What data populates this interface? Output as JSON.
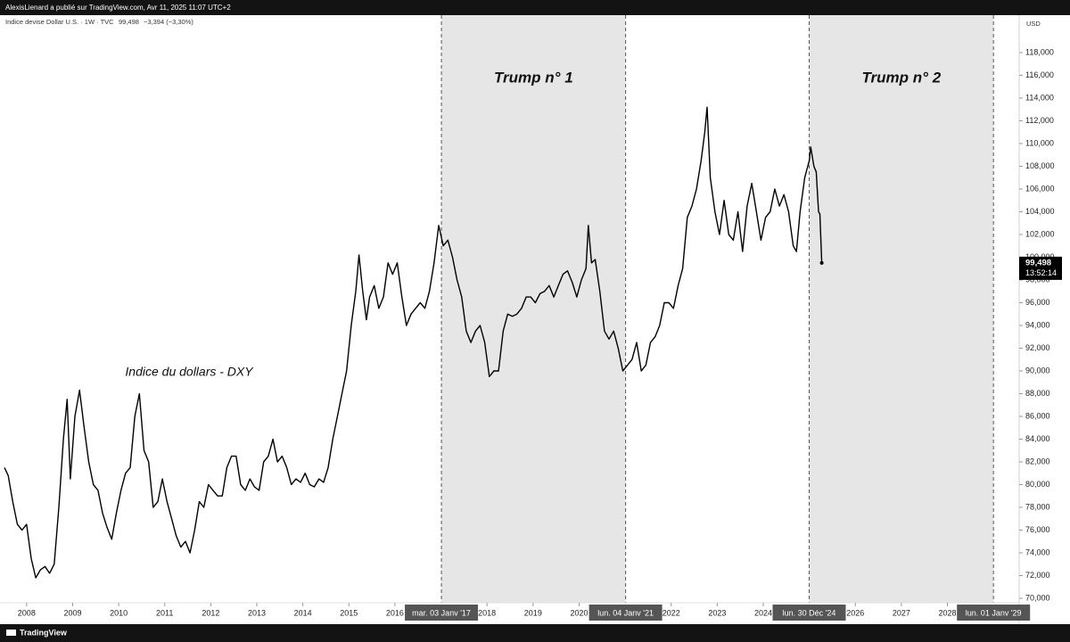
{
  "header": {
    "publisher": "AlexisLienard a publié sur TradingView.com, Avr 11, 2025 11:07 UTC+2",
    "brand": "TradingView"
  },
  "chart_data": {
    "type": "line",
    "legend_text": "Indice devise Dollar U.S. · 1W · TVC",
    "last_price": {
      "value": 99.498,
      "label": "99,498"
    },
    "change": "−3,394 (−3,30%)",
    "countdown": "13:52:14",
    "currency": "USD",
    "series": [
      {
        "name": "Indice du dollars - DXY",
        "color": "#000000",
        "x": [
          2007.52,
          2007.6,
          2007.7,
          2007.8,
          2007.9,
          2008.0,
          2008.1,
          2008.2,
          2008.3,
          2008.4,
          2008.5,
          2008.6,
          2008.7,
          2008.8,
          2008.88,
          2008.95,
          2009.05,
          2009.15,
          2009.25,
          2009.35,
          2009.45,
          2009.55,
          2009.65,
          2009.75,
          2009.85,
          2009.95,
          2010.05,
          2010.15,
          2010.25,
          2010.35,
          2010.45,
          2010.55,
          2010.65,
          2010.75,
          2010.85,
          2010.95,
          2011.05,
          2011.15,
          2011.25,
          2011.35,
          2011.45,
          2011.55,
          2011.65,
          2011.75,
          2011.85,
          2011.95,
          2012.05,
          2012.15,
          2012.25,
          2012.35,
          2012.45,
          2012.55,
          2012.65,
          2012.75,
          2012.85,
          2012.95,
          2013.05,
          2013.15,
          2013.25,
          2013.35,
          2013.45,
          2013.55,
          2013.65,
          2013.75,
          2013.85,
          2013.95,
          2014.05,
          2014.15,
          2014.25,
          2014.35,
          2014.45,
          2014.55,
          2014.65,
          2014.75,
          2014.85,
          2014.95,
          2015.05,
          2015.15,
          2015.22,
          2015.3,
          2015.38,
          2015.45,
          2015.55,
          2015.65,
          2015.75,
          2015.85,
          2015.95,
          2016.05,
          2016.15,
          2016.25,
          2016.35,
          2016.45,
          2016.55,
          2016.65,
          2016.75,
          2016.85,
          2016.95,
          2017.05,
          2017.15,
          2017.25,
          2017.35,
          2017.45,
          2017.55,
          2017.65,
          2017.75,
          2017.85,
          2017.95,
          2018.05,
          2018.15,
          2018.25,
          2018.35,
          2018.45,
          2018.55,
          2018.65,
          2018.75,
          2018.85,
          2018.95,
          2019.05,
          2019.15,
          2019.25,
          2019.35,
          2019.45,
          2019.55,
          2019.65,
          2019.75,
          2019.85,
          2019.95,
          2020.05,
          2020.15,
          2020.2,
          2020.27,
          2020.35,
          2020.45,
          2020.55,
          2020.65,
          2020.75,
          2020.85,
          2020.95,
          2021.05,
          2021.15,
          2021.25,
          2021.35,
          2021.45,
          2021.55,
          2021.65,
          2021.75,
          2021.85,
          2021.95,
          2022.05,
          2022.15,
          2022.25,
          2022.35,
          2022.45,
          2022.55,
          2022.65,
          2022.73,
          2022.78,
          2022.85,
          2022.95,
          2023.05,
          2023.15,
          2023.25,
          2023.35,
          2023.45,
          2023.55,
          2023.65,
          2023.75,
          2023.85,
          2023.95,
          2024.05,
          2024.15,
          2024.25,
          2024.35,
          2024.45,
          2024.55,
          2024.65,
          2024.72,
          2024.8,
          2024.9,
          2025.0,
          2025.03,
          2025.1,
          2025.15,
          2025.2,
          2025.23,
          2025.27
        ],
        "values": [
          81.5,
          80.8,
          78.5,
          76.5,
          76,
          76.5,
          73.5,
          71.8,
          72.5,
          72.8,
          72.2,
          73,
          78,
          84,
          87.5,
          80.5,
          86,
          88.3,
          85,
          82,
          80,
          79.5,
          77.5,
          76.2,
          75.2,
          77.5,
          79.5,
          81,
          81.5,
          86,
          88,
          83,
          82,
          78,
          78.5,
          80.5,
          78.5,
          77,
          75.5,
          74.5,
          75,
          74,
          76,
          78.5,
          78,
          80,
          79.5,
          79,
          79,
          81.5,
          82.5,
          82.5,
          80,
          79.5,
          80.5,
          79.8,
          79.5,
          82,
          82.5,
          84,
          82,
          82.5,
          81.5,
          80,
          80.5,
          80.2,
          81,
          80,
          79.8,
          80.5,
          80.2,
          81.5,
          84,
          86,
          88,
          90,
          94,
          97,
          100.2,
          97,
          94.5,
          96.5,
          97.5,
          95.5,
          96.5,
          99.5,
          98.5,
          99.5,
          96.5,
          94,
          95,
          95.5,
          96,
          95.5,
          97,
          99.5,
          102.8,
          101,
          101.5,
          100,
          98,
          96.5,
          93.5,
          92.5,
          93.5,
          94,
          92.5,
          89.5,
          90,
          90,
          93.5,
          95,
          94.8,
          95,
          95.5,
          96.5,
          96.5,
          96,
          96.8,
          97,
          97.5,
          96.5,
          97.5,
          98.5,
          98.8,
          97.8,
          96.5,
          98,
          99,
          102.8,
          99.5,
          99.8,
          97,
          93.5,
          92.8,
          93.5,
          92,
          90,
          90.5,
          91,
          92.5,
          90,
          90.5,
          92.5,
          93,
          94,
          96,
          96,
          95.5,
          97.5,
          99,
          103.5,
          104.5,
          106,
          108.5,
          111,
          113.2,
          107,
          104,
          102,
          105,
          102,
          101.5,
          104,
          100.5,
          104.5,
          106.5,
          104,
          101.5,
          103.5,
          104,
          106,
          104.5,
          105.5,
          104,
          101,
          100.5,
          104,
          107,
          108.5,
          109.7,
          108,
          107.5,
          104,
          103.8,
          99.498
        ]
      }
    ],
    "regions": [
      {
        "label": "Trump n° 1",
        "start": 2017.01,
        "end": 2021.01,
        "start_label": "mar. 03 Janv '17",
        "end_label": "lun. 04 Janv '21"
      },
      {
        "label": "Trump n° 2",
        "start": 2024.997,
        "end": 2029.0,
        "start_label": "lun. 30 Déc '24",
        "end_label": "lun. 01 Janv '29"
      }
    ],
    "xlim": [
      2007.5,
      2029.5
    ],
    "xticks": [
      2008,
      2009,
      2010,
      2011,
      2012,
      2013,
      2014,
      2015,
      2016,
      2018,
      2019,
      2020,
      2022,
      2023,
      2024,
      2026,
      2027,
      2028
    ],
    "ylim": [
      67.96,
      121.29
    ],
    "yticks": [
      {
        "value": 70,
        "label": "70,000"
      },
      {
        "value": 72,
        "label": "72,000"
      },
      {
        "value": 74,
        "label": "74,000"
      },
      {
        "value": 76,
        "label": "76,000"
      },
      {
        "value": 78,
        "label": "78,000"
      },
      {
        "value": 80,
        "label": "80,000"
      },
      {
        "value": 82,
        "label": "82,000"
      },
      {
        "value": 84,
        "label": "84,000"
      },
      {
        "value": 86,
        "label": "86,000"
      },
      {
        "value": 88,
        "label": "88,000"
      },
      {
        "value": 90,
        "label": "90,000"
      },
      {
        "value": 92,
        "label": "92,000"
      },
      {
        "value": 94,
        "label": "94,000"
      },
      {
        "value": 96,
        "label": "96,000"
      },
      {
        "value": 98,
        "label": "98,000"
      },
      {
        "value": 100,
        "label": "100,000"
      },
      {
        "value": 102,
        "label": "102,000"
      },
      {
        "value": 104,
        "label": "104,000"
      },
      {
        "value": 106,
        "label": "106,000"
      },
      {
        "value": 108,
        "label": "108,000"
      },
      {
        "value": 110,
        "label": "110,000"
      },
      {
        "value": 112,
        "label": "112,000"
      },
      {
        "value": 114,
        "label": "114,000"
      },
      {
        "value": 116,
        "label": "116,000"
      },
      {
        "value": 118,
        "label": "118,000"
      }
    ],
    "grid": false
  }
}
